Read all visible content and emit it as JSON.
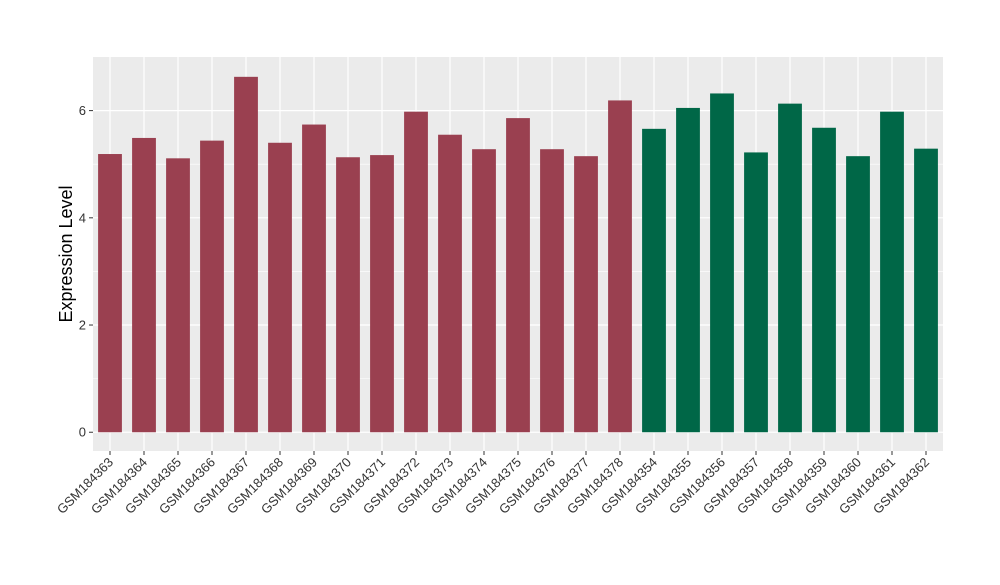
{
  "chart_data": {
    "type": "bar",
    "title": "",
    "xlabel": "",
    "ylabel": "Expression Level",
    "ylim": [
      -0.35,
      7.0
    ],
    "yticks": [
      0,
      2,
      4,
      6
    ],
    "grid": true,
    "legend": "none",
    "colors": {
      "group_a": "#9a4050",
      "group_b": "#006747",
      "panel_bg": "#ebebeb",
      "grid": "#ffffff",
      "text": "#333333"
    },
    "categories": [
      "GSM184363",
      "GSM184364",
      "GSM184365",
      "GSM184366",
      "GSM184367",
      "GSM184368",
      "GSM184369",
      "GSM184370",
      "GSM184371",
      "GSM184372",
      "GSM184373",
      "GSM184374",
      "GSM184375",
      "GSM184376",
      "GSM184377",
      "GSM184378",
      "GSM184354",
      "GSM184355",
      "GSM184356",
      "GSM184357",
      "GSM184358",
      "GSM184359",
      "GSM184360",
      "GSM184361",
      "GSM184362"
    ],
    "values": [
      5.19,
      5.49,
      5.11,
      5.44,
      6.63,
      5.4,
      5.74,
      5.13,
      5.17,
      5.98,
      5.55,
      5.28,
      5.86,
      5.28,
      5.15,
      6.19,
      5.66,
      6.05,
      6.32,
      5.22,
      6.13,
      5.68,
      5.15,
      5.98,
      5.29
    ],
    "groups": [
      "a",
      "a",
      "a",
      "a",
      "a",
      "a",
      "a",
      "a",
      "a",
      "a",
      "a",
      "a",
      "a",
      "a",
      "a",
      "a",
      "b",
      "b",
      "b",
      "b",
      "b",
      "b",
      "b",
      "b",
      "b"
    ]
  }
}
